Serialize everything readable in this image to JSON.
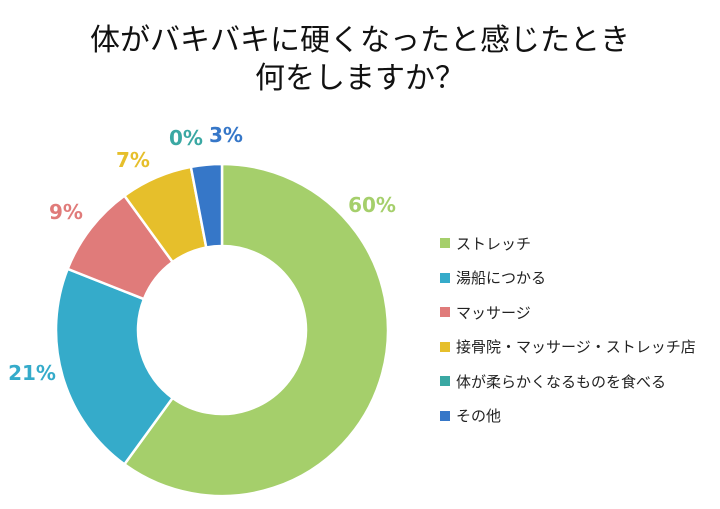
{
  "chart_data": {
    "type": "pie",
    "donut": true,
    "title_lines": [
      "体がバキバキに硬くなったと感じたとき",
      "何をしますか？"
    ],
    "categories": [
      "ストレッチ",
      "湯船につかる",
      "マッサージ",
      "接骨院・マッサージ・ストレッチ店",
      "体が柔らかくなるものを食べる",
      "その他"
    ],
    "values": [
      60,
      21,
      9,
      7,
      0,
      3
    ],
    "labels": [
      "60%",
      "21%",
      "9%",
      "7%",
      "0%",
      "3%"
    ],
    "colors": [
      "#a5cf6b",
      "#35abca",
      "#e07b7a",
      "#e6bf2b",
      "#3aa8a3",
      "#3677c8"
    ],
    "legend_placement": "right",
    "start": "top",
    "direction": "clockwise"
  }
}
